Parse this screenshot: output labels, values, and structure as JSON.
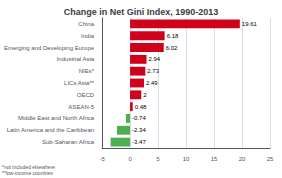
{
  "chart_data": {
    "type": "bar",
    "orientation": "horizontal",
    "title": "Change in Net Gini Index, 1990-2013",
    "categories": [
      "Sub-Saharan Africa",
      "Latin America and the Caribbean",
      "Middle East and North Africa",
      "ASEAN-5",
      "OECD",
      "LICs Asia**",
      "NIEs*",
      "Industrial Asia",
      "Emerging and Developing Europe",
      "India",
      "China"
    ],
    "values": [
      -3.47,
      -2.34,
      -0.74,
      0.48,
      2,
      2.49,
      2.73,
      2.94,
      6.02,
      6.18,
      19.61
    ],
    "colors": [
      "#4caf50",
      "#4caf50",
      "#4caf50",
      "#d0021b",
      "#d0021b",
      "#d0021b",
      "#d0021b",
      "#d0021b",
      "#d0021b",
      "#d0021b",
      "#d0021b"
    ],
    "xlim": [
      -5,
      25
    ],
    "xticks": [
      -5,
      0,
      5,
      10,
      15,
      20,
      25
    ],
    "grid": true,
    "data_labels": true,
    "annotations": [
      "*not included elsewhere",
      "**low-income countries"
    ]
  }
}
